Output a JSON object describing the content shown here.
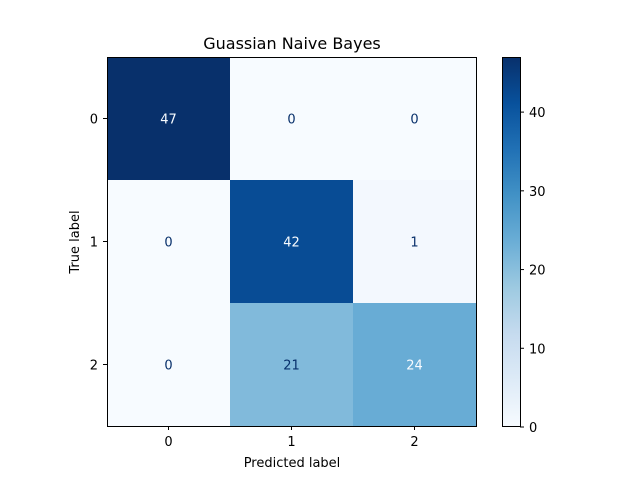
{
  "chart_data": {
    "type": "heatmap",
    "title": "Guassian Naive Bayes",
    "xlabel": "Predicted label",
    "ylabel": "True label",
    "x_ticks": [
      "0",
      "1",
      "2"
    ],
    "y_ticks": [
      "0",
      "1",
      "2"
    ],
    "values": [
      [
        47,
        0,
        0
      ],
      [
        0,
        42,
        1
      ],
      [
        0,
        21,
        24
      ]
    ],
    "colormap": "Blues",
    "vmin": 0,
    "vmax": 47,
    "colorbar_ticks": [
      0,
      10,
      20,
      30,
      40
    ],
    "grid": false
  }
}
